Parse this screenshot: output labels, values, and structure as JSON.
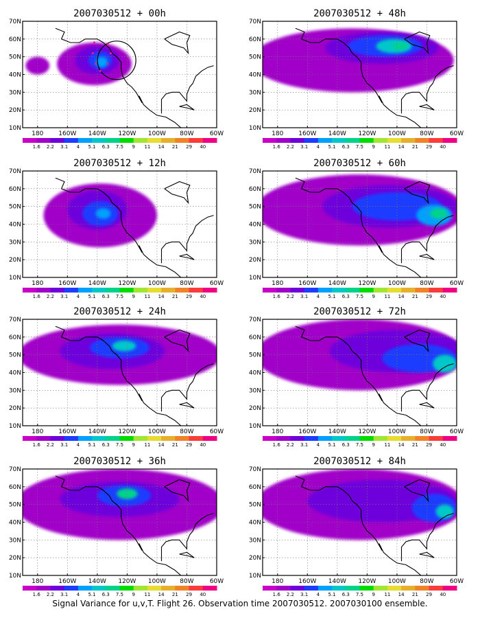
{
  "caption": "Signal Variance for u,v,T. Flight 26. Observation time 2007030512. 2007030100 ensemble.",
  "axes": {
    "lon_labels": [
      "180",
      "160W",
      "140W",
      "120W",
      "100W",
      "80W",
      "60W"
    ],
    "lat_labels": [
      "10N",
      "20N",
      "30N",
      "40N",
      "50N",
      "60N",
      "70N"
    ],
    "lon_range": [
      -190,
      -60
    ],
    "lat_range": [
      10,
      70
    ],
    "grid": "dotted"
  },
  "colorbar": {
    "labels": [
      "1.6",
      "2.2",
      "3.1",
      "4",
      "5.1",
      "6.3",
      "7.5",
      "9",
      "11",
      "14",
      "21",
      "29",
      "40"
    ],
    "colors": [
      "#a000c8",
      "#6e00dc",
      "#1e3cff",
      "#00a0ff",
      "#00c8c8",
      "#00d28c",
      "#00dc00",
      "#a0e632",
      "#e6dc32",
      "#e6af2d",
      "#f08228",
      "#fa3c3c",
      "#f00082"
    ]
  },
  "panels": [
    {
      "title": "2007030512 + 00h",
      "lead_hours": 0,
      "max_level_index": 3
    },
    {
      "title": "2007030512 + 48h",
      "lead_hours": 48,
      "max_level_index": 5
    },
    {
      "title": "2007030512 + 12h",
      "lead_hours": 12,
      "max_level_index": 3
    },
    {
      "title": "2007030512 + 60h",
      "lead_hours": 60,
      "max_level_index": 5
    },
    {
      "title": "2007030512 + 24h",
      "lead_hours": 24,
      "max_level_index": 4
    },
    {
      "title": "2007030512 + 72h",
      "lead_hours": 72,
      "max_level_index": 4
    },
    {
      "title": "2007030512 + 36h",
      "lead_hours": 36,
      "max_level_index": 5
    },
    {
      "title": "2007030512 + 84h",
      "lead_hours": 84,
      "max_level_index": 4
    }
  ],
  "blobs": [
    [
      {
        "lon": -142,
        "lat": 46,
        "rlon": 25,
        "rlat": 12,
        "level": 0
      },
      {
        "lon": -180,
        "lat": 45,
        "rlon": 8,
        "rlat": 5,
        "level": 0
      },
      {
        "lon": -140,
        "lat": 48,
        "rlon": 15,
        "rlat": 8,
        "level": 1
      },
      {
        "lon": -138,
        "lat": 48,
        "rlon": 8,
        "rlat": 5,
        "level": 2
      },
      {
        "lon": -137,
        "lat": 47,
        "rlon": 4,
        "rlat": 3,
        "level": 3
      }
    ],
    [
      {
        "lon": -130,
        "lat": 48,
        "rlon": 68,
        "rlat": 18,
        "level": 0
      },
      {
        "lon": -110,
        "lat": 55,
        "rlon": 38,
        "rlat": 9,
        "level": 1
      },
      {
        "lon": -108,
        "lat": 56,
        "rlon": 25,
        "rlat": 6,
        "level": 2
      },
      {
        "lon": -102,
        "lat": 56,
        "rlon": 12,
        "rlat": 4,
        "level": 4
      },
      {
        "lon": -98,
        "lat": 56,
        "rlon": 5,
        "rlat": 2,
        "level": 5
      }
    ],
    [
      {
        "lon": -138,
        "lat": 45,
        "rlon": 38,
        "rlat": 18,
        "level": 0
      },
      {
        "lon": -140,
        "lat": 48,
        "rlon": 20,
        "rlat": 11,
        "level": 1
      },
      {
        "lon": -138,
        "lat": 46,
        "rlon": 12,
        "rlat": 7,
        "level": 2
      },
      {
        "lon": -136,
        "lat": 46,
        "rlon": 5,
        "rlat": 3,
        "level": 3
      }
    ],
    [
      {
        "lon": -125,
        "lat": 48,
        "rlon": 70,
        "rlat": 20,
        "level": 0
      },
      {
        "lon": -105,
        "lat": 50,
        "rlon": 45,
        "rlat": 12,
        "level": 1
      },
      {
        "lon": -100,
        "lat": 50,
        "rlon": 30,
        "rlat": 8,
        "level": 2
      },
      {
        "lon": -75,
        "lat": 45,
        "rlon": 12,
        "rlat": 6,
        "level": 3
      },
      {
        "lon": -72,
        "lat": 46,
        "rlon": 6,
        "rlat": 3,
        "level": 5
      }
    ],
    [
      {
        "lon": -125,
        "lat": 50,
        "rlon": 68,
        "rlat": 17,
        "level": 0
      },
      {
        "lon": -130,
        "lat": 52,
        "rlon": 35,
        "rlat": 10,
        "level": 1
      },
      {
        "lon": -125,
        "lat": 54,
        "rlon": 20,
        "rlat": 6,
        "level": 2
      },
      {
        "lon": -122,
        "lat": 55,
        "rlon": 8,
        "rlat": 3,
        "level": 4
      }
    ],
    [
      {
        "lon": -125,
        "lat": 50,
        "rlon": 70,
        "rlat": 20,
        "level": 0
      },
      {
        "lon": -100,
        "lat": 52,
        "rlon": 45,
        "rlat": 12,
        "level": 1
      },
      {
        "lon": -85,
        "lat": 48,
        "rlon": 25,
        "rlat": 8,
        "level": 2
      },
      {
        "lon": -68,
        "lat": 45,
        "rlon": 8,
        "rlat": 5,
        "level": 4
      }
    ],
    [
      {
        "lon": -125,
        "lat": 50,
        "rlon": 70,
        "rlat": 20,
        "level": 0
      },
      {
        "lon": -125,
        "lat": 53,
        "rlon": 40,
        "rlat": 10,
        "level": 1
      },
      {
        "lon": -122,
        "lat": 55,
        "rlon": 18,
        "rlat": 6,
        "level": 2
      },
      {
        "lon": -120,
        "lat": 56,
        "rlon": 7,
        "rlat": 3,
        "level": 5
      }
    ],
    [
      {
        "lon": -125,
        "lat": 50,
        "rlon": 70,
        "rlat": 20,
        "level": 0
      },
      {
        "lon": -110,
        "lat": 52,
        "rlon": 50,
        "rlat": 12,
        "level": 1
      },
      {
        "lon": -75,
        "lat": 48,
        "rlon": 15,
        "rlat": 8,
        "level": 2
      },
      {
        "lon": -68,
        "lat": 46,
        "rlon": 6,
        "rlat": 4,
        "level": 4
      }
    ]
  ]
}
